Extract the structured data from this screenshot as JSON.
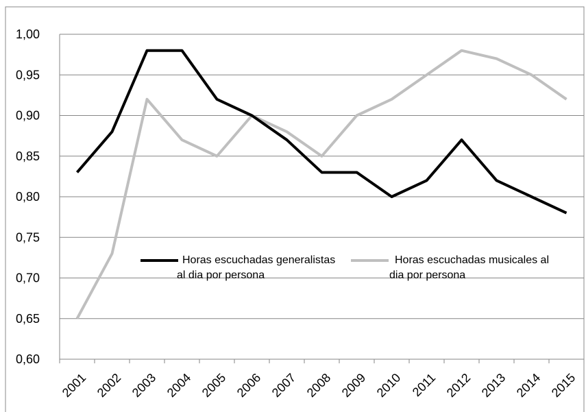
{
  "chart_data": {
    "type": "line",
    "categories": [
      "2001",
      "2002",
      "2003",
      "2004",
      "2005",
      "2006",
      "2007",
      "2008",
      "2009",
      "2010",
      "2011",
      "2012",
      "2013",
      "2014",
      "2015"
    ],
    "series": [
      {
        "name": "Horas escuchadas generalistas al dia por persona",
        "color": "#000000",
        "values": [
          0.83,
          0.88,
          0.98,
          0.98,
          0.92,
          0.9,
          0.87,
          0.83,
          0.83,
          0.8,
          0.82,
          0.87,
          0.82,
          0.8,
          0.78
        ]
      },
      {
        "name": "Horas escuchadas musicales al dia por persona",
        "color": "#bfbfbf",
        "values": [
          0.65,
          0.73,
          0.92,
          0.87,
          0.85,
          0.9,
          0.88,
          0.85,
          0.9,
          0.92,
          0.95,
          0.98,
          0.97,
          0.95,
          0.92
        ]
      }
    ],
    "ylim": [
      0.6,
      1.0
    ],
    "yticks": [
      {
        "value": 0.6,
        "label": "0,60"
      },
      {
        "value": 0.65,
        "label": "0,65"
      },
      {
        "value": 0.7,
        "label": "0,70"
      },
      {
        "value": 0.75,
        "label": "0,75"
      },
      {
        "value": 0.8,
        "label": "0,80"
      },
      {
        "value": 0.85,
        "label": "0,85"
      },
      {
        "value": 0.9,
        "label": "0,90"
      },
      {
        "value": 0.95,
        "label": "0,95"
      },
      {
        "value": 1.0,
        "label": "1,00"
      }
    ],
    "grid": true
  }
}
